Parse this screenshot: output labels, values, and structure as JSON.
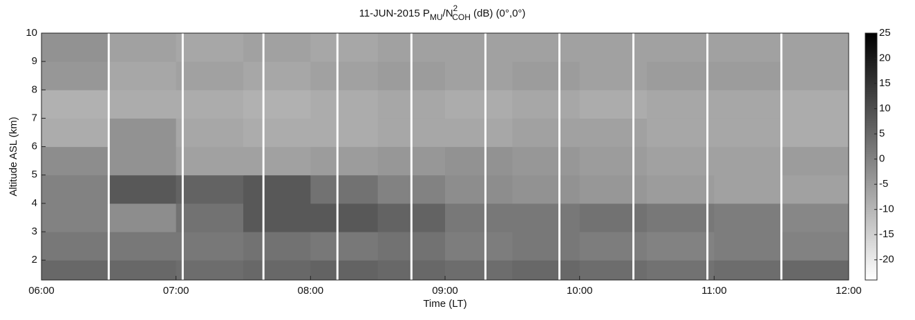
{
  "chart_data": {
    "type": "heatmap",
    "title": [
      "11-JUN-2015 P",
      "MU",
      "/N",
      "2",
      "COH",
      " (dB) (0°,0°)"
    ],
    "xlabel": "Time (LT)",
    "ylabel": "Altitude ASL (km)",
    "x": [
      6.25,
      6.75,
      7.25,
      7.75,
      8.25,
      8.75,
      9.25,
      9.75,
      10.25,
      10.75,
      11.25,
      11.75
    ],
    "y": [
      1.5,
      2.5,
      3.5,
      4.5,
      5.5,
      6.5,
      7.5,
      8.5,
      9.5
    ],
    "z": [
      [
        5,
        5,
        4,
        5,
        6,
        5,
        4,
        5,
        4,
        3,
        4,
        5
      ],
      [
        2,
        2,
        2,
        3,
        2,
        3,
        1,
        2,
        1,
        0,
        1,
        0
      ],
      [
        0,
        -2,
        3,
        8,
        8,
        6,
        2,
        2,
        3,
        2,
        1,
        -1
      ],
      [
        0,
        8,
        6,
        8,
        3,
        0,
        -2,
        -3,
        -4,
        -5,
        -6,
        -6
      ],
      [
        -2,
        -3,
        -6,
        -6,
        -5,
        -4,
        -3,
        -4,
        -5,
        -6,
        -6,
        -5
      ],
      [
        -8,
        -3,
        -7,
        -8,
        -8,
        -7,
        -7,
        -6,
        -6,
        -7,
        -7,
        -8
      ],
      [
        -9,
        -8,
        -8,
        -9,
        -8,
        -7,
        -8,
        -7,
        -8,
        -7,
        -7,
        -8
      ],
      [
        -4,
        -7,
        -6,
        -7,
        -6,
        -5,
        -6,
        -5,
        -6,
        -5,
        -5,
        -6
      ],
      [
        -3,
        -6,
        -7,
        -6,
        -7,
        -6,
        -6,
        -6,
        -6,
        -6,
        -6,
        -6
      ]
    ],
    "gaps": [
      6.5,
      7.05,
      7.65,
      8.2,
      8.75,
      9.3,
      9.85,
      10.4,
      10.95,
      11.5
    ],
    "xlim": [
      6,
      12
    ],
    "ylim": [
      1.3,
      10
    ],
    "zlim": [
      -24,
      25
    ],
    "xticks": [
      {
        "value": 6,
        "label": "06:00"
      },
      {
        "value": 7,
        "label": "07:00"
      },
      {
        "value": 8,
        "label": "08:00"
      },
      {
        "value": 9,
        "label": "09:00"
      },
      {
        "value": 10,
        "label": "10:00"
      },
      {
        "value": 11,
        "label": "11:00"
      },
      {
        "value": 12,
        "label": "12:00"
      }
    ],
    "yticks": [
      2,
      3,
      4,
      5,
      6,
      7,
      8,
      9,
      10
    ],
    "zticks": [
      -20,
      -15,
      -10,
      -5,
      0,
      5,
      10,
      15,
      20,
      25
    ]
  }
}
